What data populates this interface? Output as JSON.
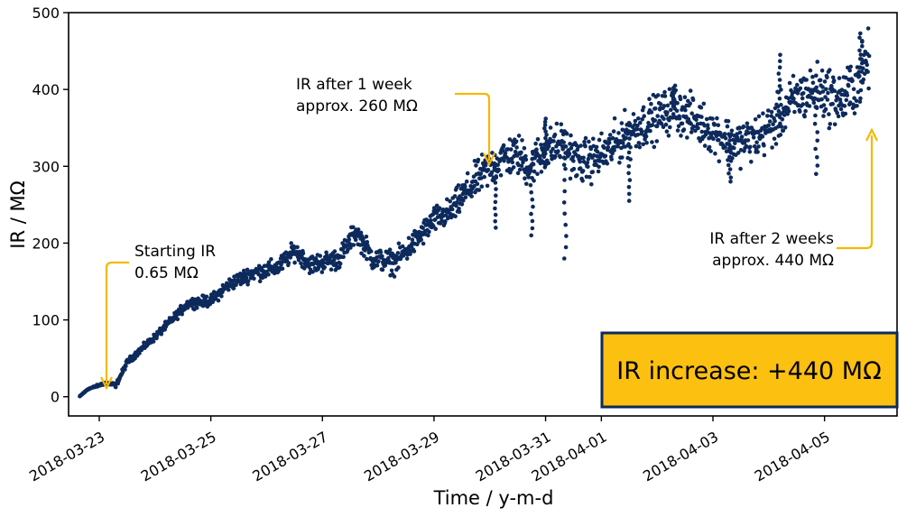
{
  "chart_data": {
    "type": "scatter",
    "title": "",
    "xlabel": "Time / y-m-d",
    "ylabel": "IR / MΩ",
    "ylim": [
      -25,
      500
    ],
    "xlim_days": [
      -0.55,
      14.3
    ],
    "x_origin": "2018-03-23",
    "yticks": [
      0,
      100,
      200,
      300,
      400,
      500
    ],
    "xticks": [
      {
        "day": 0,
        "label": "2018-03-23"
      },
      {
        "day": 2,
        "label": "2018-03-25"
      },
      {
        "day": 4,
        "label": "2018-03-27"
      },
      {
        "day": 6,
        "label": "2018-03-29"
      },
      {
        "day": 8,
        "label": "2018-03-31"
      },
      {
        "day": 9,
        "label": "2018-04-01"
      },
      {
        "day": 11,
        "label": "2018-04-03"
      },
      {
        "day": 13,
        "label": "2018-04-05"
      }
    ],
    "series": [
      {
        "name": "IR",
        "color": "#0d2a5c",
        "trend": [
          [
            -0.35,
            0.65
          ],
          [
            -0.2,
            10
          ],
          [
            0.0,
            15
          ],
          [
            0.1,
            18
          ],
          [
            0.3,
            15
          ],
          [
            0.5,
            45
          ],
          [
            0.8,
            65
          ],
          [
            1.0,
            78
          ],
          [
            1.3,
            100
          ],
          [
            1.6,
            122
          ],
          [
            2.0,
            125
          ],
          [
            2.3,
            145
          ],
          [
            2.7,
            160
          ],
          [
            3.2,
            168
          ],
          [
            3.5,
            190
          ],
          [
            3.8,
            172
          ],
          [
            4.3,
            180
          ],
          [
            4.6,
            215
          ],
          [
            4.9,
            180
          ],
          [
            5.3,
            175
          ],
          [
            5.7,
            205
          ],
          [
            6.0,
            230
          ],
          [
            6.3,
            240
          ],
          [
            6.5,
            260
          ],
          [
            6.8,
            285
          ],
          [
            7.2,
            310
          ],
          [
            7.5,
            315
          ],
          [
            7.7,
            300
          ],
          [
            8.0,
            320
          ],
          [
            8.3,
            330
          ],
          [
            8.6,
            305
          ],
          [
            8.9,
            310
          ],
          [
            9.2,
            325
          ],
          [
            9.5,
            345
          ],
          [
            9.9,
            360
          ],
          [
            10.3,
            375
          ],
          [
            10.7,
            360
          ],
          [
            11.0,
            345
          ],
          [
            11.4,
            330
          ],
          [
            11.8,
            338
          ],
          [
            12.1,
            355
          ],
          [
            12.5,
            390
          ],
          [
            12.9,
            400
          ],
          [
            13.3,
            385
          ],
          [
            13.6,
            410
          ],
          [
            13.8,
            440
          ]
        ],
        "noise": [
          [
            -0.35,
            0
          ],
          [
            0.5,
            4
          ],
          [
            1.0,
            5
          ],
          [
            2.0,
            8
          ],
          [
            3.0,
            12
          ],
          [
            4.0,
            14
          ],
          [
            5.0,
            16
          ],
          [
            6.0,
            18
          ],
          [
            6.5,
            22
          ],
          [
            7.0,
            28
          ],
          [
            8.0,
            30
          ],
          [
            9.0,
            30
          ],
          [
            10.0,
            32
          ],
          [
            11.0,
            30
          ],
          [
            12.0,
            32
          ],
          [
            13.0,
            38
          ],
          [
            13.8,
            42
          ]
        ],
        "dips": [
          {
            "day": 7.75,
            "value": 210
          },
          {
            "day": 8.35,
            "value": 180
          },
          {
            "day": 9.5,
            "value": 255
          },
          {
            "day": 11.3,
            "value": 280
          },
          {
            "day": 12.85,
            "value": 290
          },
          {
            "day": 7.1,
            "value": 220
          }
        ],
        "spikes": [
          {
            "day": 8.0,
            "value": 362
          },
          {
            "day": 12.2,
            "value": 445
          },
          {
            "day": 13.65,
            "value": 473
          },
          {
            "day": 10.3,
            "value": 405
          }
        ]
      }
    ],
    "annotations": [
      {
        "lines": [
          "Starting IR",
          "0.65 MΩ"
        ],
        "arrow_color": "#f5b800"
      },
      {
        "lines": [
          "IR after 1 week",
          "approx. 260 MΩ"
        ],
        "arrow_color": "#f5b800"
      },
      {
        "lines": [
          "IR after 2 weeks",
          "approx. 440 MΩ"
        ],
        "arrow_color": "#f5b800"
      }
    ],
    "highlight_box": {
      "text": "IR increase: +440 MΩ",
      "fill": "#fcc010",
      "border": "#0d2a5c"
    }
  }
}
